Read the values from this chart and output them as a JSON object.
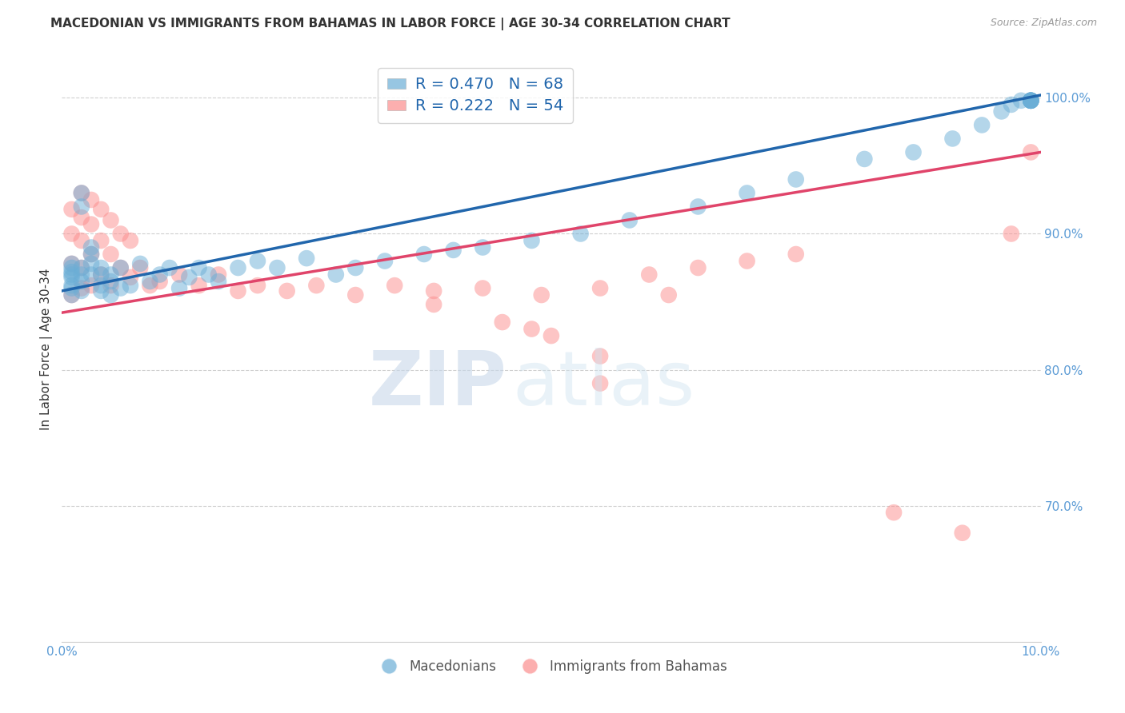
{
  "title": "MACEDONIAN VS IMMIGRANTS FROM BAHAMAS IN LABOR FORCE | AGE 30-34 CORRELATION CHART",
  "source": "Source: ZipAtlas.com",
  "ylabel": "In Labor Force | Age 30-34",
  "x_min": 0.0,
  "x_max": 0.1,
  "y_min": 0.6,
  "y_max": 1.03,
  "x_ticks": [
    0.0,
    0.02,
    0.04,
    0.06,
    0.08,
    0.1
  ],
  "x_tick_labels": [
    "0.0%",
    "",
    "",
    "",
    "",
    "10.0%"
  ],
  "y_ticks": [
    0.7,
    0.8,
    0.9,
    1.0
  ],
  "y_tick_labels": [
    "70.0%",
    "80.0%",
    "90.0%",
    "100.0%"
  ],
  "blue_color": "#6baed6",
  "pink_color": "#fc8d8d",
  "blue_line_color": "#2166ac",
  "pink_line_color": "#e0446a",
  "legend_blue_label": "R = 0.470   N = 68",
  "legend_pink_label": "R = 0.222   N = 54",
  "bottom_legend_macedonians": "Macedonians",
  "bottom_legend_bahamas": "Immigrants from Bahamas",
  "mac_trend_x0": 0.0,
  "mac_trend_x1": 0.1,
  "mac_trend_y0": 0.858,
  "mac_trend_y1": 1.002,
  "bah_trend_x0": 0.0,
  "bah_trend_x1": 0.1,
  "bah_trend_y0": 0.842,
  "bah_trend_y1": 0.96,
  "macedonian_x": [
    0.001,
    0.001,
    0.001,
    0.001,
    0.001,
    0.001,
    0.001,
    0.001,
    0.002,
    0.002,
    0.002,
    0.002,
    0.002,
    0.002,
    0.003,
    0.003,
    0.003,
    0.003,
    0.004,
    0.004,
    0.004,
    0.004,
    0.005,
    0.005,
    0.005,
    0.006,
    0.006,
    0.007,
    0.008,
    0.009,
    0.01,
    0.011,
    0.012,
    0.013,
    0.014,
    0.015,
    0.016,
    0.018,
    0.02,
    0.022,
    0.025,
    0.028,
    0.03,
    0.033,
    0.037,
    0.04,
    0.043,
    0.048,
    0.053,
    0.058,
    0.065,
    0.07,
    0.075,
    0.082,
    0.087,
    0.091,
    0.094,
    0.096,
    0.097,
    0.098,
    0.099,
    0.099,
    0.099,
    0.099,
    0.099,
    0.099,
    0.099,
    0.099
  ],
  "macedonian_y": [
    0.862,
    0.868,
    0.87,
    0.872,
    0.86,
    0.855,
    0.875,
    0.878,
    0.93,
    0.92,
    0.865,
    0.87,
    0.875,
    0.858,
    0.89,
    0.878,
    0.885,
    0.87,
    0.862,
    0.87,
    0.875,
    0.858,
    0.865,
    0.87,
    0.855,
    0.875,
    0.86,
    0.862,
    0.878,
    0.865,
    0.87,
    0.875,
    0.86,
    0.868,
    0.875,
    0.87,
    0.865,
    0.875,
    0.88,
    0.875,
    0.882,
    0.87,
    0.875,
    0.88,
    0.885,
    0.888,
    0.89,
    0.895,
    0.9,
    0.91,
    0.92,
    0.93,
    0.94,
    0.955,
    0.96,
    0.97,
    0.98,
    0.99,
    0.995,
    0.998,
    0.998,
    0.998,
    0.998,
    0.998,
    0.998,
    0.998,
    0.998,
    0.998
  ],
  "bahamas_x": [
    0.001,
    0.001,
    0.001,
    0.001,
    0.002,
    0.002,
    0.002,
    0.002,
    0.002,
    0.003,
    0.003,
    0.003,
    0.003,
    0.004,
    0.004,
    0.004,
    0.005,
    0.005,
    0.005,
    0.006,
    0.006,
    0.007,
    0.007,
    0.008,
    0.009,
    0.01,
    0.012,
    0.014,
    0.016,
    0.018,
    0.02,
    0.023,
    0.026,
    0.03,
    0.034,
    0.038,
    0.043,
    0.049,
    0.055,
    0.062,
    0.038,
    0.048,
    0.055,
    0.045,
    0.05,
    0.055,
    0.06,
    0.065,
    0.07,
    0.075,
    0.085,
    0.092,
    0.097,
    0.099
  ],
  "bahamas_y": [
    0.918,
    0.9,
    0.878,
    0.855,
    0.93,
    0.912,
    0.895,
    0.875,
    0.86,
    0.925,
    0.907,
    0.885,
    0.862,
    0.918,
    0.895,
    0.87,
    0.91,
    0.885,
    0.862,
    0.9,
    0.875,
    0.895,
    0.868,
    0.875,
    0.862,
    0.865,
    0.87,
    0.862,
    0.87,
    0.858,
    0.862,
    0.858,
    0.862,
    0.855,
    0.862,
    0.858,
    0.86,
    0.855,
    0.79,
    0.855,
    0.848,
    0.83,
    0.81,
    0.835,
    0.825,
    0.86,
    0.87,
    0.875,
    0.88,
    0.885,
    0.695,
    0.68,
    0.9,
    0.96
  ],
  "watermark_zip": "ZIP",
  "watermark_atlas": "atlas",
  "title_fontsize": 11,
  "axis_label_fontsize": 11,
  "tick_fontsize": 11,
  "grid_color": "#bbbbbb",
  "background_color": "#ffffff"
}
